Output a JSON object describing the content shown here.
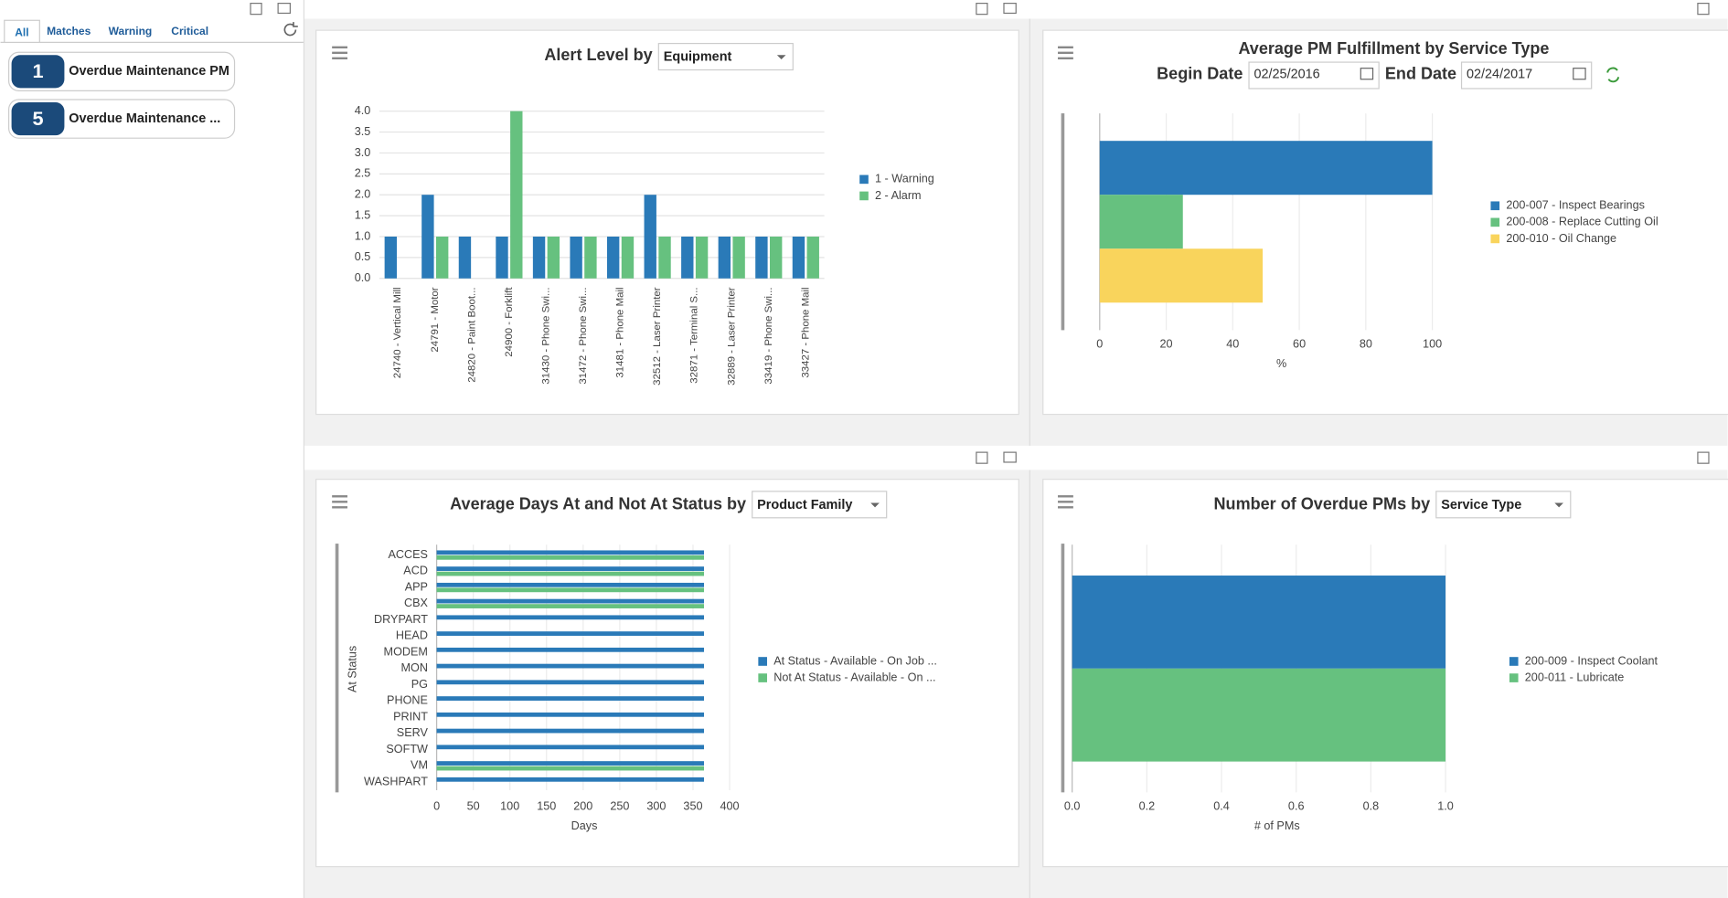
{
  "sidebar": {
    "tabs": [
      "All",
      "Matches",
      "Warning",
      "Critical"
    ],
    "alerts": [
      {
        "count": 1,
        "label": "Overdue Maintenance PM"
      },
      {
        "count": 5,
        "label": "Overdue Maintenance ..."
      }
    ]
  },
  "chart_data": [
    {
      "type": "bar",
      "title": "Alert Level by",
      "dropdown": "Equipment",
      "categories": [
        "24740 - Vertical Mill",
        "24791 - Motor",
        "24820 - Paint Boot...",
        "24900 - Forklift",
        "31430 - Phone Swi...",
        "31472 - Phone Swi...",
        "31481 - Phone Mail",
        "32512 - Laser Printer",
        "32871 - Terminal S...",
        "32889 - Laser Printer",
        "33419 - Phone Swi...",
        "33427 - Phone Mail"
      ],
      "series": [
        {
          "name": "1 - Warning",
          "color": "#2a7ab8",
          "values": [
            1,
            2,
            1,
            1,
            1,
            1,
            1,
            2,
            1,
            1,
            1,
            1
          ]
        },
        {
          "name": "2 - Alarm",
          "color": "#66c17f",
          "values": [
            null,
            1,
            null,
            4,
            1,
            1,
            1,
            1,
            1,
            1,
            1,
            1
          ]
        }
      ],
      "ylim": [
        0,
        4
      ],
      "yticks": [
        {
          "value": 0,
          "label": "0.0"
        },
        {
          "value": 0.5,
          "label": "0.5"
        },
        {
          "value": 1,
          "label": "1.0"
        },
        {
          "value": 1.5,
          "label": "1.5"
        },
        {
          "value": 2,
          "label": "2.0"
        },
        {
          "value": 2.5,
          "label": "2.5"
        },
        {
          "value": 3,
          "label": "3.0"
        },
        {
          "value": 3.5,
          "label": "3.5"
        },
        {
          "value": 4,
          "label": "4.0"
        }
      ],
      "grid": true
    },
    {
      "type": "bar",
      "orientation": "horizontal",
      "title": "Average PM Fulfillment by Service Type",
      "begin_label": "Begin Date",
      "begin_date": "02/25/2016",
      "end_label": "End Date",
      "end_date": "02/24/2017",
      "x_label": "%",
      "categories": [
        null
      ],
      "series": [
        {
          "name": "200-007 - Inspect Bearings",
          "color": "#2a7ab8",
          "values": [
            100
          ]
        },
        {
          "name": "200-008 - Replace Cutting Oil",
          "color": "#66c17f",
          "values": [
            25
          ]
        },
        {
          "name": "200-010 - Oil Change",
          "color": "#f9d45c",
          "values": [
            49
          ]
        }
      ],
      "xlim": [
        0,
        100
      ],
      "xticks": [
        0,
        20,
        40,
        60,
        80,
        100
      ],
      "grid": true
    },
    {
      "type": "bar",
      "orientation": "horizontal",
      "title": "Average Days At and Not At Status by",
      "dropdown": "Product Family",
      "x_label": "Days",
      "y_label": "At Status",
      "categories": [
        "ACCES",
        "ACD",
        "APP",
        "CBX",
        "DRYPART",
        "HEAD",
        "MODEM",
        "MON",
        "PG",
        "PHONE",
        "PRINT",
        "SERV",
        "SOFTW",
        "VM",
        "WASHPART"
      ],
      "series": [
        {
          "name": "At Status - Available - On Job ...",
          "color": "#2a7ab8",
          "values": [
            365,
            365,
            365,
            365,
            365,
            365,
            365,
            365,
            365,
            365,
            365,
            365,
            365,
            365,
            365
          ]
        },
        {
          "name": "Not At Status - Available - On ...",
          "color": "#66c17f",
          "values": [
            365,
            365,
            365,
            365,
            null,
            null,
            null,
            null,
            null,
            null,
            null,
            null,
            null,
            365,
            null
          ]
        }
      ],
      "xlim": [
        0,
        400
      ],
      "xticks": [
        0,
        50,
        100,
        150,
        200,
        250,
        300,
        350,
        400
      ],
      "grid": true
    },
    {
      "type": "bar",
      "orientation": "horizontal",
      "title": "Number of Overdue PMs by",
      "dropdown": "Service Type",
      "x_label": "# of PMs",
      "categories": [
        null
      ],
      "series": [
        {
          "name": "200-009 - Inspect Coolant",
          "color": "#2a7ab8",
          "values": [
            1
          ]
        },
        {
          "name": "200-011 - Lubricate",
          "color": "#66c17f",
          "values": [
            1
          ]
        }
      ],
      "xlim": [
        0,
        1
      ],
      "xticks": [
        {
          "value": 0,
          "label": "0.0"
        },
        {
          "value": 0.2,
          "label": "0.2"
        },
        {
          "value": 0.4,
          "label": "0.4"
        },
        {
          "value": 0.6,
          "label": "0.6"
        },
        {
          "value": 0.8,
          "label": "0.8"
        },
        {
          "value": 1,
          "label": "1.0"
        }
      ],
      "grid": true
    }
  ]
}
